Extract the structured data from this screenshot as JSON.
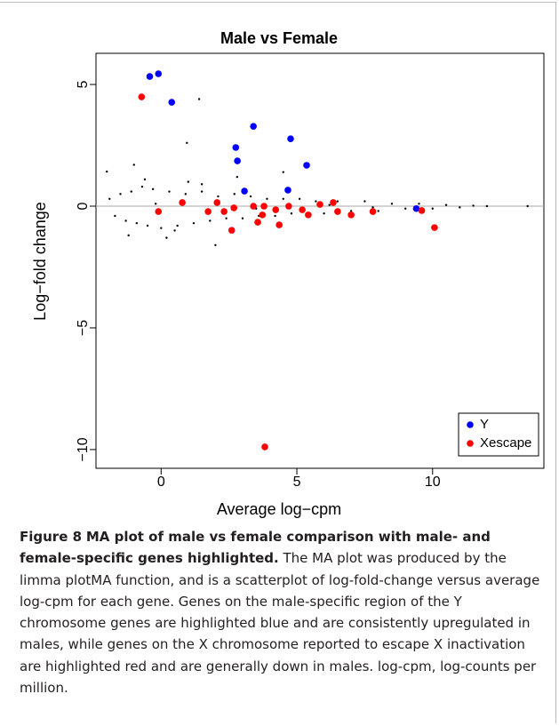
{
  "chart_data": {
    "type": "scatter",
    "title": "Male vs Female",
    "x_label": "Average log−cpm",
    "y_label": "Log−fold change",
    "xlim": [
      -2.4,
      14.1
    ],
    "ylim": [
      -10.77,
      6.28
    ],
    "xticks": [
      0,
      5,
      10
    ],
    "yticks": [
      {
        "value": -10,
        "label": "−10"
      },
      {
        "value": -5,
        "label": "−5"
      },
      0,
      5
    ],
    "reference_line_y": 0,
    "legend": "bottom-right",
    "series": [
      {
        "color": "#000000",
        "x": [
          -2,
          -1,
          0.95,
          1.4,
          4.5,
          -1.9,
          -1.7,
          -1.5,
          -1.3,
          -1.1,
          -0.9,
          -0.7,
          -0.5,
          -0.3,
          0,
          0.3,
          0.6,
          0.9,
          1.2,
          1.5,
          1.8,
          2.1,
          2.4,
          2.7,
          3.0,
          3.3,
          3.6,
          3.9,
          4.2,
          4.5,
          4.8,
          5.1,
          5.4,
          5.7,
          6.0,
          6.5,
          7.0,
          7.5,
          8.0,
          8.5,
          9.0,
          9.5,
          10.0,
          10.5,
          11.0,
          11.5,
          12.0,
          13.5,
          -1.2,
          -0.6,
          0.2,
          1.0,
          2.0,
          2.8,
          0.5,
          1.5,
          -0.2,
          3.5,
          6.2,
          7.8
        ],
        "values": [
          1.42,
          1.7,
          2.6,
          4.4,
          1.4,
          0.3,
          -0.4,
          0.5,
          -0.6,
          0.6,
          -0.7,
          0.8,
          -0.8,
          0.7,
          -0.9,
          0.6,
          -0.8,
          0.5,
          -0.7,
          0.6,
          -0.6,
          0.4,
          -0.5,
          0.5,
          -0.5,
          0.4,
          -0.4,
          0.3,
          -0.4,
          0.3,
          -0.3,
          0.3,
          -0.3,
          0.2,
          -0.3,
          0.2,
          -0.2,
          0.2,
          -0.2,
          0.1,
          -0.1,
          0.1,
          -0.1,
          0.05,
          -0.05,
          0.02,
          0,
          0,
          -1.2,
          1.1,
          -1.3,
          1.0,
          -1.6,
          1.2,
          -1.0,
          0.9,
          0.1,
          -0.1,
          0.05,
          -0.05
        ]
      },
      {
        "name": "Y",
        "color": "#0000ff",
        "x": [
          -0.42,
          -0.1,
          0.39,
          3.4,
          2.75,
          2.81,
          4.77,
          5.36,
          3.07,
          4.67,
          9.4
        ],
        "values": [
          5.33,
          5.44,
          4.27,
          3.28,
          2.41,
          1.86,
          2.77,
          1.68,
          0.62,
          0.66,
          -0.1
        ]
      },
      {
        "name": "Xescape",
        "color": "#ff0000",
        "x": [
          -0.72,
          3.82,
          10.07,
          2.6,
          4.35,
          3.56,
          -0.1,
          0.78,
          1.73,
          2.06,
          2.32,
          2.68,
          3.4,
          3.79,
          3.73,
          4.22,
          4.7,
          5.2,
          5.42,
          5.85,
          6.34,
          6.5,
          7.0,
          7.8,
          9.6
        ],
        "values": [
          4.49,
          -9.89,
          -0.88,
          -0.99,
          -0.77,
          -0.66,
          -0.22,
          0.15,
          -0.22,
          0.15,
          -0.22,
          -0.07,
          0,
          0,
          -0.36,
          -0.15,
          0,
          -0.15,
          -0.36,
          0.07,
          0.15,
          -0.22,
          -0.36,
          -0.22,
          -0.18
        ]
      }
    ]
  },
  "caption": {
    "label": "Figure 8",
    "title": "MA plot of male vs female comparison with male- and female-specific genes highlighted.",
    "text": "The MA plot was produced by the limma plotMA function, and is a scatterplot of log-fold-change versus average log-cpm for each gene. Genes on the male-specific region of the Y chromosome genes are highlighted blue and are consistently upregulated in males, while genes on the X chromosome reported to escape X inactivation are highlighted red and are generally down in males. log-cpm, log-counts per million."
  }
}
